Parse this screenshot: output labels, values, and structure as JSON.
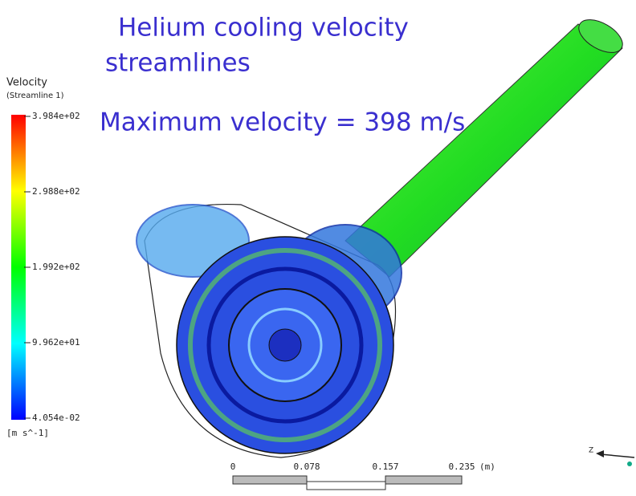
{
  "title": {
    "lines": [
      "Helium cooling velocity",
      "streamlines"
    ]
  },
  "subtitle": "Maximum velocity = 398 m/s",
  "legend": {
    "title": "Velocity",
    "subtitle": "(Streamline 1)",
    "ticks": [
      "3.984e+02",
      "2.988e+02",
      "1.992e+02",
      "9.962e+01",
      "4.054e-02"
    ],
    "unit": "[m s^-1]"
  },
  "scale_bar": {
    "labels": [
      "0",
      "0.078",
      "0.157",
      "0.235"
    ],
    "unit": "(m)"
  },
  "axis_triad": {
    "label": "Z"
  }
}
